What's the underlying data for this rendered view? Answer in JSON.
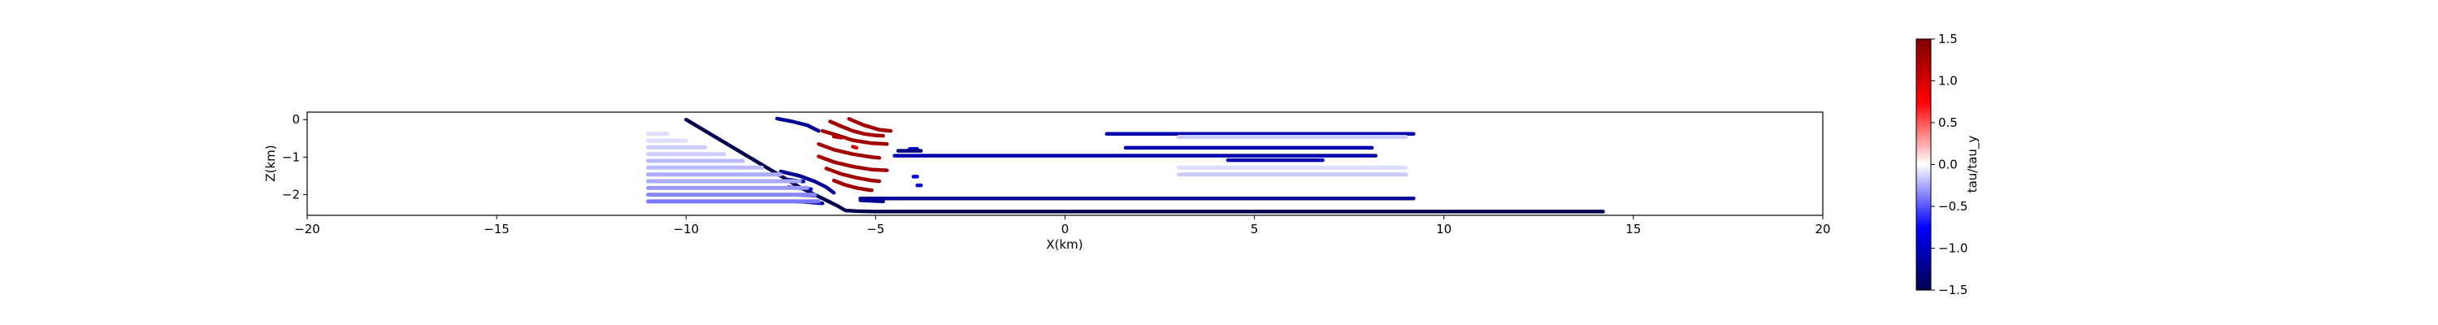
{
  "chart_data": {
    "type": "scatter",
    "title": "",
    "xlabel": "X(km)",
    "ylabel": "Z(km)",
    "xlim": [
      -20,
      20
    ],
    "ylim": [
      -2.55,
      0.2
    ],
    "x_ticks": [
      -20,
      -15,
      -10,
      -5,
      0,
      5,
      10,
      15,
      20
    ],
    "x_tick_labels": [
      "−20",
      "−15",
      "−10",
      "−5",
      "0",
      "5",
      "10",
      "15",
      "20"
    ],
    "y_ticks": [
      0,
      -1,
      -2
    ],
    "y_tick_labels": [
      "0",
      "−1",
      "−2"
    ],
    "grid": false,
    "colorbar": {
      "label": "tau/tau_y",
      "range": [
        -1.5,
        1.5
      ],
      "ticks": [
        1.5,
        1.0,
        0.5,
        0.0,
        -0.5,
        -1.0,
        -1.5
      ],
      "tick_labels": [
        "1.5",
        "1.0",
        "0.5",
        "0.0",
        "−0.5",
        "−1.0",
        "−1.5"
      ],
      "colormap": "seismic",
      "colors": [
        "#00004d",
        "#0000ff",
        "#ffffff",
        "#ff0000",
        "#800000"
      ]
    },
    "series": [
      {
        "kind": "line",
        "value": -1.5,
        "x": [
          -10,
          -9,
          -8,
          -7,
          -6,
          -5.8,
          -5.5,
          -5,
          0,
          5,
          10,
          14.2
        ],
        "y": [
          0,
          -0.6,
          -1.2,
          -1.8,
          -2.3,
          -2.42,
          -2.44,
          -2.45,
          -2.45,
          -2.45,
          -2.45,
          -2.45
        ]
      },
      {
        "kind": "line",
        "value": -1.2,
        "x": [
          -7.6,
          -7.2,
          -6.8,
          -6.5
        ],
        "y": [
          0.03,
          -0.05,
          -0.15,
          -0.3
        ]
      },
      {
        "kind": "line",
        "value": -1.2,
        "x": [
          -7.5,
          -7.0,
          -6.6,
          -6.3,
          -6.1
        ],
        "y": [
          -1.38,
          -1.5,
          -1.65,
          -1.8,
          -1.95
        ]
      },
      {
        "kind": "line",
        "value": -1.0,
        "x": [
          -7.3,
          -6.9
        ],
        "y": [
          -1.6,
          -1.65
        ]
      },
      {
        "kind": "line",
        "value": -1.0,
        "x": [
          -7.3,
          -6.7
        ],
        "y": [
          -1.8,
          -1.85
        ]
      },
      {
        "kind": "line",
        "value": -1.1,
        "x": [
          -7.2,
          -6.6
        ],
        "y": [
          -2.0,
          -2.02
        ]
      },
      {
        "kind": "line",
        "value": -1.1,
        "x": [
          -7.1,
          -6.8,
          -6.4
        ],
        "y": [
          -2.18,
          -2.2,
          -2.23
        ]
      },
      {
        "kind": "line",
        "value": 1.3,
        "x": [
          -6.2,
          -5.9,
          -5.6,
          -5.3,
          -5.0,
          -4.8
        ],
        "y": [
          -0.05,
          -0.18,
          -0.3,
          -0.38,
          -0.42,
          -0.43
        ]
      },
      {
        "kind": "line",
        "value": 1.3,
        "x": [
          -6.4,
          -6.0,
          -5.6,
          -5.1,
          -4.7
        ],
        "y": [
          -0.3,
          -0.42,
          -0.55,
          -0.63,
          -0.65
        ]
      },
      {
        "kind": "line",
        "value": 1.3,
        "x": [
          -6.5,
          -6.1,
          -5.6,
          -5.1,
          -4.9
        ],
        "y": [
          -0.65,
          -0.8,
          -0.92,
          -1.0,
          -1.02
        ]
      },
      {
        "kind": "line",
        "value": 1.3,
        "x": [
          -6.5,
          -6.1,
          -5.6,
          -5.1,
          -4.7
        ],
        "y": [
          -0.98,
          -1.13,
          -1.25,
          -1.33,
          -1.35
        ]
      },
      {
        "kind": "line",
        "value": 1.3,
        "x": [
          -6.3,
          -5.9,
          -5.5,
          -5.1,
          -4.9
        ],
        "y": [
          -1.3,
          -1.45,
          -1.55,
          -1.62,
          -1.64
        ]
      },
      {
        "kind": "line",
        "value": 1.3,
        "x": [
          -6.1,
          -5.8,
          -5.5,
          -5.2,
          -5.1
        ],
        "y": [
          -1.62,
          -1.74,
          -1.82,
          -1.87,
          -1.88
        ]
      },
      {
        "kind": "line",
        "value": 1.3,
        "x": [
          -5.7,
          -5.3,
          -4.9,
          -4.6
        ],
        "y": [
          0.02,
          -0.15,
          -0.27,
          -0.3
        ]
      },
      {
        "kind": "line",
        "value": 1.1,
        "x": [
          -5.6,
          -5.5
        ],
        "y": [
          -0.72,
          -0.75
        ]
      },
      {
        "kind": "line",
        "value": 1.2,
        "x": [
          -6.1,
          -5.9
        ],
        "y": [
          -0.45,
          -0.48
        ]
      },
      {
        "kind": "line",
        "value": -0.9,
        "x": [
          -4.1,
          -3.9
        ],
        "y": [
          -0.78,
          -0.78
        ]
      },
      {
        "kind": "line",
        "value": -0.9,
        "x": [
          -4.0,
          -3.9
        ],
        "y": [
          -1.52,
          -1.52
        ]
      },
      {
        "kind": "line",
        "value": -0.9,
        "x": [
          -3.9,
          -3.8
        ],
        "y": [
          -1.75,
          -1.75
        ]
      },
      {
        "kind": "line",
        "value": -1.3,
        "x": [
          -4.4,
          -3.8
        ],
        "y": [
          -0.83,
          -0.83
        ]
      },
      {
        "kind": "line",
        "value": -1.1,
        "x": [
          -4.5,
          8.2
        ],
        "y": [
          -0.96,
          -0.96
        ]
      },
      {
        "kind": "line",
        "value": -1.1,
        "x": [
          1.1,
          9.2
        ],
        "y": [
          -0.38,
          -0.38
        ]
      },
      {
        "kind": "line",
        "value": -1.1,
        "x": [
          1.6,
          8.1
        ],
        "y": [
          -0.75,
          -0.75
        ]
      },
      {
        "kind": "line",
        "value": -1.1,
        "x": [
          4.3,
          6.8
        ],
        "y": [
          -1.08,
          -1.08
        ]
      },
      {
        "kind": "line",
        "value": -1.2,
        "x": [
          -5.4,
          9.2
        ],
        "y": [
          -2.1,
          -2.1
        ]
      },
      {
        "kind": "line",
        "value": -1.2,
        "x": [
          -5.4,
          -4.8
        ],
        "y": [
          -2.15,
          -2.18
        ]
      },
      {
        "kind": "line",
        "value": -0.1,
        "x": [
          -11,
          -10.5
        ],
        "y": [
          -0.38,
          -0.38
        ]
      },
      {
        "kind": "line",
        "value": -0.1,
        "x": [
          -11,
          -10
        ],
        "y": [
          -0.56,
          -0.56
        ]
      },
      {
        "kind": "line",
        "value": -0.15,
        "x": [
          -11,
          -9.5
        ],
        "y": [
          -0.74,
          -0.74
        ]
      },
      {
        "kind": "line",
        "value": -0.15,
        "x": [
          -11,
          -9
        ],
        "y": [
          -0.92,
          -0.92
        ]
      },
      {
        "kind": "line",
        "value": -0.2,
        "x": [
          -11,
          -8.5
        ],
        "y": [
          -1.1,
          -1.1
        ]
      },
      {
        "kind": "line",
        "value": -0.2,
        "x": [
          -11,
          -8
        ],
        "y": [
          -1.28,
          -1.28
        ]
      },
      {
        "kind": "line",
        "value": -0.25,
        "x": [
          -11,
          -7.5
        ],
        "y": [
          -1.46,
          -1.46
        ]
      },
      {
        "kind": "line",
        "value": -0.25,
        "x": [
          -11,
          -7
        ],
        "y": [
          -1.64,
          -1.64
        ]
      },
      {
        "kind": "line",
        "value": -0.3,
        "x": [
          -11,
          -6.8
        ],
        "y": [
          -1.82,
          -1.82
        ]
      },
      {
        "kind": "line",
        "value": -0.35,
        "x": [
          -11,
          -6.6
        ],
        "y": [
          -2.0,
          -2.0
        ]
      },
      {
        "kind": "line",
        "value": -0.4,
        "x": [
          -11,
          -6.5
        ],
        "y": [
          -2.18,
          -2.18
        ]
      },
      {
        "kind": "line",
        "value": -0.15,
        "x": [
          3,
          9
        ],
        "y": [
          -0.46,
          -0.46
        ]
      },
      {
        "kind": "line",
        "value": -0.1,
        "x": [
          3,
          9
        ],
        "y": [
          -1.28,
          -1.28
        ]
      },
      {
        "kind": "line",
        "value": -0.15,
        "x": [
          3,
          9
        ],
        "y": [
          -1.46,
          -1.46
        ]
      }
    ]
  }
}
